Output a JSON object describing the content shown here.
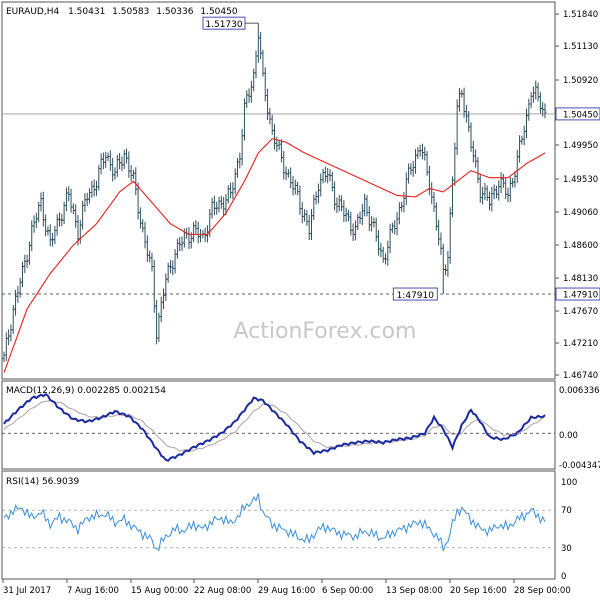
{
  "header": {
    "symbol": "EURAUD,H4",
    "open": "1.50431",
    "high": "1.50583",
    "low": "1.50336",
    "close": "1.50450"
  },
  "watermark": "ActionForex.com",
  "colors": {
    "bar": "#2f4f5f",
    "ma": "#e8221c",
    "macd": "#1a2aa0",
    "signal": "#b0a0a0",
    "rsi": "#3a8fd8",
    "guide": "#333333",
    "frame": "#555555"
  },
  "chart_data": [
    {
      "type": "ohlc",
      "panel": "price",
      "ylim": [
        1.4674,
        1.52
      ],
      "yticks": [
        "1.51840",
        "1.51130",
        "1.50920",
        "1.49950",
        "1.49530",
        "1.49060",
        "1.48600",
        "1.48130",
        "1.47670",
        "1.47210",
        "1.46740"
      ],
      "current_label": "1.50450",
      "current_value": 1.5045,
      "support_label": "1.47910",
      "support_value": 1.4791,
      "peak_annotation": "1.51730",
      "peak_value": 1.5173,
      "trough_annotation": "1:47910",
      "xticks": [
        "31 Jul 2017",
        "7 Aug 16:00",
        "15 Aug 00:00",
        "22 Aug 08:00",
        "29 Aug 16:00",
        "6 Sep 00:00",
        "13 Sep 08:00",
        "20 Sep 16:00",
        "28 Sep 00:00"
      ],
      "close_path": [
        [
          0,
          1.47
        ],
        [
          4,
          1.477
        ],
        [
          8,
          1.482
        ],
        [
          12,
          1.488
        ],
        [
          16,
          1.492
        ],
        [
          20,
          1.486
        ],
        [
          24,
          1.49
        ],
        [
          28,
          1.493
        ],
        [
          32,
          1.488
        ],
        [
          36,
          1.493
        ],
        [
          40,
          1.495
        ],
        [
          44,
          1.499
        ],
        [
          48,
          1.496
        ],
        [
          52,
          1.499
        ],
        [
          56,
          1.495
        ],
        [
          60,
          1.488
        ],
        [
          64,
          1.482
        ],
        [
          66,
          1.474
        ],
        [
          70,
          1.481
        ],
        [
          74,
          1.485
        ],
        [
          78,
          1.487
        ],
        [
          82,
          1.488
        ],
        [
          86,
          1.487
        ],
        [
          90,
          1.491
        ],
        [
          94,
          1.492
        ],
        [
          98,
          1.493
        ],
        [
          102,
          1.499
        ],
        [
          104,
          1.505
        ],
        [
          108,
          1.51
        ],
        [
          110,
          1.516
        ],
        [
          112,
          1.509
        ],
        [
          116,
          1.502
        ],
        [
          120,
          1.498
        ],
        [
          124,
          1.495
        ],
        [
          128,
          1.492
        ],
        [
          132,
          1.488
        ],
        [
          136,
          1.495
        ],
        [
          140,
          1.496
        ],
        [
          144,
          1.492
        ],
        [
          148,
          1.49
        ],
        [
          152,
          1.488
        ],
        [
          156,
          1.492
        ],
        [
          160,
          1.488
        ],
        [
          164,
          1.484
        ],
        [
          168,
          1.488
        ],
        [
          172,
          1.492
        ],
        [
          176,
          1.497
        ],
        [
          180,
          1.5
        ],
        [
          184,
          1.495
        ],
        [
          188,
          1.487
        ],
        [
          190,
          1.482
        ],
        [
          192,
          1.485
        ],
        [
          194,
          1.495
        ],
        [
          196,
          1.505
        ],
        [
          198,
          1.508
        ],
        [
          202,
          1.5
        ],
        [
          206,
          1.494
        ],
        [
          210,
          1.492
        ],
        [
          214,
          1.495
        ],
        [
          218,
          1.493
        ],
        [
          222,
          1.498
        ],
        [
          226,
          1.504
        ],
        [
          228,
          1.508
        ],
        [
          232,
          1.506
        ],
        [
          234,
          1.5045
        ]
      ],
      "bar_range_half": 0.0016,
      "ma_path": [
        [
          0,
          1.468
        ],
        [
          10,
          1.477
        ],
        [
          20,
          1.482
        ],
        [
          30,
          1.486
        ],
        [
          40,
          1.489
        ],
        [
          50,
          1.4935
        ],
        [
          56,
          1.495
        ],
        [
          64,
          1.492
        ],
        [
          72,
          1.489
        ],
        [
          80,
          1.4875
        ],
        [
          88,
          1.4875
        ],
        [
          96,
          1.4905
        ],
        [
          104,
          1.495
        ],
        [
          110,
          1.499
        ],
        [
          116,
          1.501
        ],
        [
          122,
          1.5005
        ],
        [
          130,
          1.499
        ],
        [
          140,
          1.4975
        ],
        [
          150,
          1.496
        ],
        [
          160,
          1.4945
        ],
        [
          170,
          1.493
        ],
        [
          178,
          1.4928
        ],
        [
          184,
          1.494
        ],
        [
          190,
          1.4935
        ],
        [
          196,
          1.495
        ],
        [
          202,
          1.4965
        ],
        [
          210,
          1.4955
        ],
        [
          218,
          1.4955
        ],
        [
          226,
          1.4975
        ],
        [
          234,
          1.499
        ]
      ]
    },
    {
      "type": "line",
      "panel": "macd",
      "label": "MACD(12,26,9) 0.002285 0.002154",
      "ylim": [
        -0.00434,
        0.00633
      ],
      "yticks": [
        "0.006336",
        "0.00",
        "-0.004347"
      ],
      "macd": [
        [
          0,
          0.0012
        ],
        [
          6,
          0.003
        ],
        [
          12,
          0.0045
        ],
        [
          18,
          0.005
        ],
        [
          24,
          0.0032
        ],
        [
          30,
          0.0018
        ],
        [
          36,
          0.0015
        ],
        [
          42,
          0.002
        ],
        [
          48,
          0.0028
        ],
        [
          54,
          0.0022
        ],
        [
          60,
          0.0005
        ],
        [
          66,
          -0.002
        ],
        [
          70,
          -0.0035
        ],
        [
          76,
          -0.0028
        ],
        [
          82,
          -0.0018
        ],
        [
          88,
          -0.001
        ],
        [
          94,
          0.0
        ],
        [
          100,
          0.0015
        ],
        [
          104,
          0.003
        ],
        [
          108,
          0.0045
        ],
        [
          112,
          0.0042
        ],
        [
          116,
          0.003
        ],
        [
          122,
          0.0012
        ],
        [
          128,
          -0.001
        ],
        [
          134,
          -0.0025
        ],
        [
          140,
          -0.0022
        ],
        [
          146,
          -0.0015
        ],
        [
          152,
          -0.0012
        ],
        [
          158,
          -0.001
        ],
        [
          164,
          -0.0012
        ],
        [
          170,
          -0.0008
        ],
        [
          176,
          -0.0006
        ],
        [
          182,
          0.0
        ],
        [
          186,
          0.002
        ],
        [
          190,
          0.0005
        ],
        [
          194,
          -0.0018
        ],
        [
          198,
          0.001
        ],
        [
          202,
          0.003
        ],
        [
          206,
          0.0015
        ],
        [
          210,
          -0.0005
        ],
        [
          216,
          -0.0008
        ],
        [
          222,
          0.0
        ],
        [
          228,
          0.002
        ],
        [
          234,
          0.0022
        ]
      ],
      "signal": [
        [
          0,
          0.0005
        ],
        [
          6,
          0.0018
        ],
        [
          12,
          0.0032
        ],
        [
          18,
          0.0042
        ],
        [
          24,
          0.004
        ],
        [
          30,
          0.003
        ],
        [
          36,
          0.0022
        ],
        [
          42,
          0.002
        ],
        [
          48,
          0.0023
        ],
        [
          54,
          0.0024
        ],
        [
          60,
          0.0015
        ],
        [
          66,
          -0.0002
        ],
        [
          70,
          -0.0015
        ],
        [
          76,
          -0.0022
        ],
        [
          82,
          -0.0022
        ],
        [
          88,
          -0.0017
        ],
        [
          94,
          -0.0009
        ],
        [
          100,
          0.0002
        ],
        [
          104,
          0.0015
        ],
        [
          108,
          0.0028
        ],
        [
          112,
          0.0037
        ],
        [
          116,
          0.0036
        ],
        [
          122,
          0.0025
        ],
        [
          128,
          0.0008
        ],
        [
          134,
          -0.001
        ],
        [
          140,
          -0.0018
        ],
        [
          146,
          -0.0017
        ],
        [
          152,
          -0.0015
        ],
        [
          158,
          -0.0013
        ],
        [
          164,
          -0.0012
        ],
        [
          170,
          -0.001
        ],
        [
          176,
          -0.0008
        ],
        [
          182,
          -0.0003
        ],
        [
          186,
          0.0008
        ],
        [
          190,
          0.001
        ],
        [
          194,
          -0.0002
        ],
        [
          198,
          0.0
        ],
        [
          202,
          0.0014
        ],
        [
          206,
          0.0018
        ],
        [
          210,
          0.0008
        ],
        [
          216,
          -0.0002
        ],
        [
          222,
          -0.0002
        ],
        [
          228,
          0.001
        ],
        [
          234,
          0.0021
        ]
      ]
    },
    {
      "type": "line",
      "panel": "rsi",
      "label": "RSI(14) 56.9039",
      "ylim": [
        0,
        100
      ],
      "yticks": [
        "100",
        "70",
        "30",
        "0"
      ],
      "levels": [
        70,
        30
      ],
      "rsi": [
        [
          0,
          60
        ],
        [
          4,
          70
        ],
        [
          8,
          72
        ],
        [
          12,
          62
        ],
        [
          16,
          68
        ],
        [
          20,
          55
        ],
        [
          24,
          63
        ],
        [
          28,
          58
        ],
        [
          32,
          50
        ],
        [
          36,
          62
        ],
        [
          40,
          64
        ],
        [
          44,
          66
        ],
        [
          48,
          57
        ],
        [
          52,
          60
        ],
        [
          56,
          52
        ],
        [
          60,
          45
        ],
        [
          64,
          38
        ],
        [
          66,
          28
        ],
        [
          70,
          42
        ],
        [
          74,
          50
        ],
        [
          78,
          48
        ],
        [
          82,
          55
        ],
        [
          86,
          50
        ],
        [
          90,
          58
        ],
        [
          94,
          62
        ],
        [
          98,
          56
        ],
        [
          102,
          65
        ],
        [
          104,
          74
        ],
        [
          108,
          80
        ],
        [
          110,
          84
        ],
        [
          112,
          68
        ],
        [
          116,
          55
        ],
        [
          120,
          50
        ],
        [
          124,
          46
        ],
        [
          128,
          40
        ],
        [
          132,
          38
        ],
        [
          136,
          50
        ],
        [
          140,
          52
        ],
        [
          144,
          46
        ],
        [
          148,
          44
        ],
        [
          152,
          42
        ],
        [
          156,
          48
        ],
        [
          160,
          44
        ],
        [
          164,
          40
        ],
        [
          168,
          46
        ],
        [
          172,
          50
        ],
        [
          176,
          54
        ],
        [
          180,
          58
        ],
        [
          184,
          50
        ],
        [
          188,
          40
        ],
        [
          190,
          30
        ],
        [
          192,
          38
        ],
        [
          194,
          55
        ],
        [
          196,
          68
        ],
        [
          198,
          72
        ],
        [
          202,
          60
        ],
        [
          206,
          50
        ],
        [
          210,
          48
        ],
        [
          214,
          54
        ],
        [
          218,
          52
        ],
        [
          222,
          60
        ],
        [
          226,
          66
        ],
        [
          228,
          70
        ],
        [
          232,
          62
        ],
        [
          234,
          57
        ]
      ]
    }
  ]
}
